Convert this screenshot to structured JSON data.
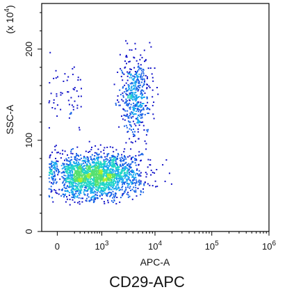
{
  "chart_data": {
    "type": "scatter",
    "subtype": "flow-cytometry density dot plot",
    "title": "CD29-APC",
    "xlabel": "APC-A",
    "ylabel": "SSC-A",
    "y_multiplier_label": "(x 10",
    "y_multiplier_exponent": "4",
    "y_multiplier_close": ")",
    "x_scale": "biexponential",
    "xlim": [
      -400,
      1000000
    ],
    "ylim": [
      0,
      250
    ],
    "x_ticks": [
      {
        "value": 0,
        "base": "0",
        "exp": ""
      },
      {
        "value": 1000,
        "base": "10",
        "exp": "3"
      },
      {
        "value": 10000,
        "base": "10",
        "exp": "4"
      },
      {
        "value": 100000,
        "base": "10",
        "exp": "5"
      },
      {
        "value": 1000000,
        "base": "10",
        "exp": "6"
      }
    ],
    "y_ticks": [
      {
        "value": 0,
        "label": "0"
      },
      {
        "value": 100,
        "label": "100"
      },
      {
        "value": 200,
        "label": "200"
      }
    ],
    "grid": false,
    "legend": "none",
    "density_colors": [
      "#1010c8",
      "#1560e6",
      "#18a8f0",
      "#22d6c8",
      "#55e070",
      "#aaee30"
    ],
    "populations": [
      {
        "x_center": 600,
        "y_center": 60,
        "x_spread_log": 0.45,
        "y_spread": 12,
        "weight": 0.55
      },
      {
        "x_center": 1500,
        "y_center": 65,
        "x_spread_log": 0.3,
        "y_spread": 12,
        "weight": 0.25
      },
      {
        "x_center": 4200,
        "y_center": 150,
        "x_spread_log": 0.14,
        "y_spread": 22,
        "weight": 0.2
      }
    ]
  }
}
